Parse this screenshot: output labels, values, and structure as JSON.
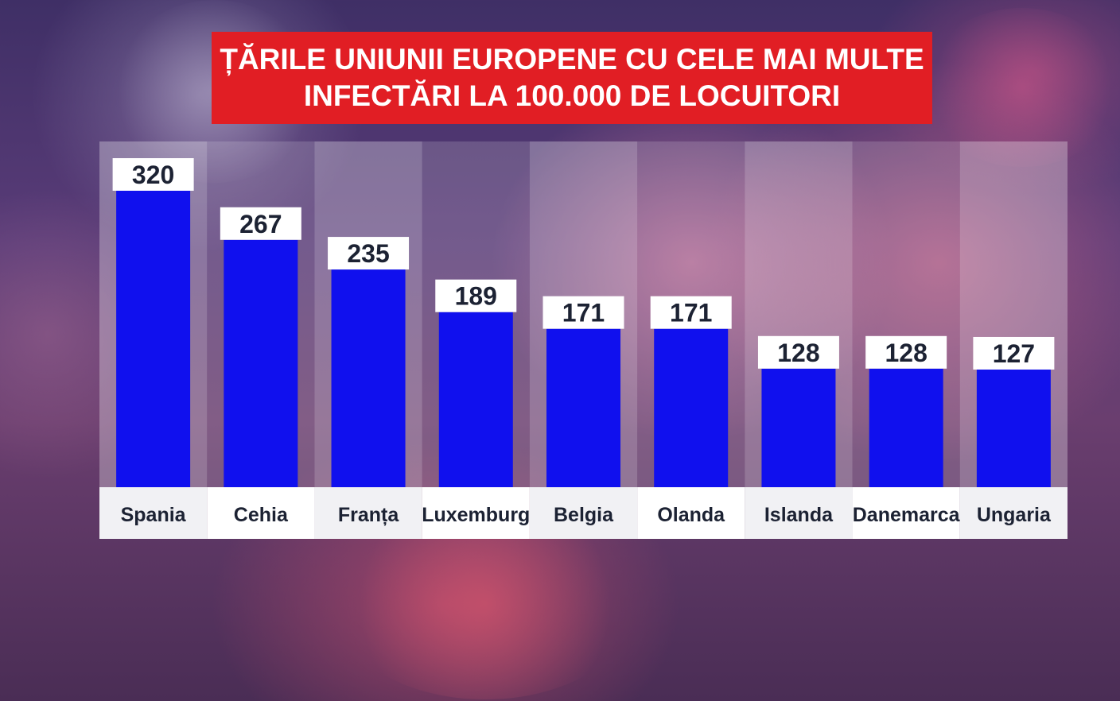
{
  "title": {
    "line1": "ȚĂRILE UNIUNII EUROPENE CU CELE MAI MULTE",
    "line2": "INFECTĂRI LA 100.000 DE LOCUITORI"
  },
  "colors": {
    "title_bg": "#e11e24",
    "bar": "#1010ee",
    "label_bg": "#ffffff"
  },
  "chart_data": {
    "type": "bar",
    "title": "ȚĂRILE UNIUNII EUROPENE CU CELE MAI MULTE INFECTĂRI LA 100.000 DE LOCUITORI",
    "categories": [
      "Spania",
      "Cehia",
      "Franța",
      "Luxemburg",
      "Belgia",
      "Olanda",
      "Islanda",
      "Danemarca",
      "Ungaria"
    ],
    "values": [
      320,
      267,
      235,
      189,
      171,
      171,
      128,
      128,
      127
    ],
    "xlabel": "",
    "ylabel": "",
    "data_labels": true,
    "grid": false,
    "legend": "none"
  }
}
